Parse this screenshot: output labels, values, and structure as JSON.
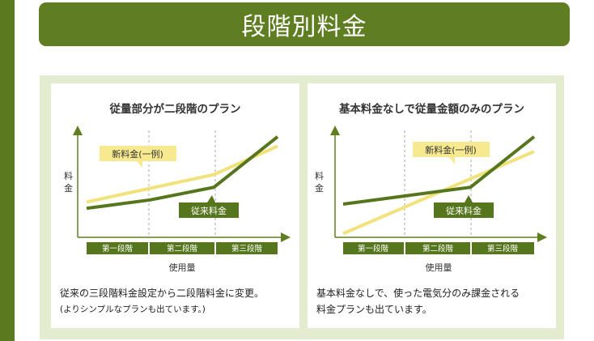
{
  "page": {
    "title": "段階別料金",
    "colors": {
      "accent": "#5f7e22",
      "panel_frame": "#e4eccf",
      "new_rate_line": "#f1e27c",
      "old_rate_line": "#56761e",
      "label_box_yellow": "#f6e98f"
    }
  },
  "chart_data": [
    {
      "type": "line",
      "title": "従量部分が二段階のプラン",
      "ylabel": "料金",
      "xlabel": "使用量",
      "tiers": [
        "第一段階",
        "第二段階",
        "第三段階"
      ],
      "xlim": [
        0,
        3
      ],
      "ylim": [
        0,
        10
      ],
      "series": [
        {
          "name": "新料金(一例)",
          "color": "#f1e27c",
          "x": [
            0,
            2,
            3
          ],
          "y": [
            3.2,
            5.8,
            8.5
          ]
        },
        {
          "name": "従来料金",
          "color": "#56761e",
          "x": [
            0,
            1,
            2,
            3
          ],
          "y": [
            2.6,
            3.4,
            4.6,
            9.4
          ]
        }
      ],
      "caption": "従来の三段階料金設定から二段階料金に変更。",
      "note": "(よりシンプルなプランも出ています。)"
    },
    {
      "type": "line",
      "title": "基本料金なしで従量金額のみのプラン",
      "ylabel": "料金",
      "xlabel": "使用量",
      "tiers": [
        "第一段階",
        "第二段階",
        "第三段階"
      ],
      "xlim": [
        0,
        3
      ],
      "ylim": [
        0,
        10
      ],
      "series": [
        {
          "name": "新料金(一例)",
          "color": "#f1e27c",
          "x": [
            0,
            3
          ],
          "y": [
            0.2,
            8.0
          ]
        },
        {
          "name": "従来料金",
          "color": "#56761e",
          "x": [
            0,
            1,
            2,
            3
          ],
          "y": [
            3.0,
            3.8,
            4.6,
            9.4
          ]
        }
      ],
      "caption": "基本料金なしで、使った電気分のみ課金される",
      "caption2": "料金プランも出ています。"
    }
  ]
}
